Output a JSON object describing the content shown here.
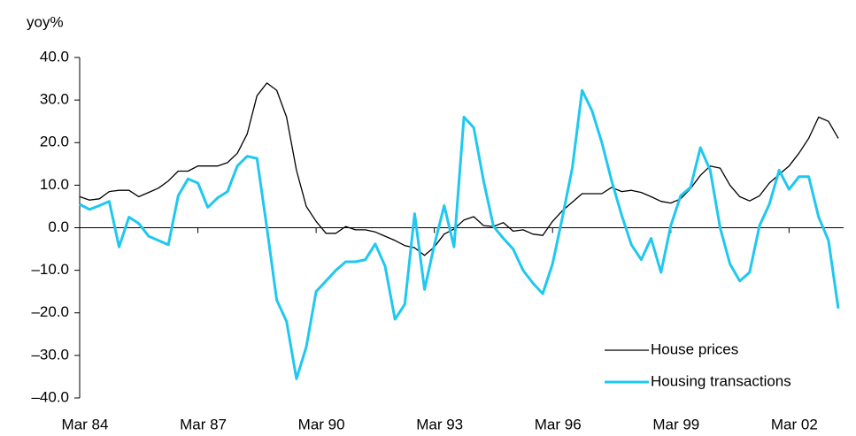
{
  "chart_data": {
    "type": "line",
    "y_label": "yoy%",
    "categories": [
      "Mar 84",
      null,
      null,
      null,
      null,
      null,
      null,
      null,
      null,
      null,
      null,
      null,
      "Mar 87",
      null,
      null,
      null,
      null,
      null,
      null,
      null,
      null,
      null,
      null,
      null,
      "Mar 90",
      null,
      null,
      null,
      null,
      null,
      null,
      null,
      null,
      null,
      null,
      null,
      "Mar 93",
      null,
      null,
      null,
      null,
      null,
      null,
      null,
      null,
      null,
      null,
      null,
      "Mar 96",
      null,
      null,
      null,
      null,
      null,
      null,
      null,
      null,
      null,
      null,
      null,
      "Mar 99",
      null,
      null,
      null,
      null,
      null,
      null,
      null,
      null,
      null,
      null,
      null,
      "Mar 02",
      null,
      null,
      null,
      null,
      null
    ],
    "series": [
      {
        "name": "House prices",
        "color": "#000000",
        "width": 1.3,
        "values": [
          7.3,
          6.5,
          6.8,
          8.5,
          8.8,
          8.8,
          7.3,
          8.3,
          9.3,
          11,
          13.3,
          13.3,
          14.5,
          14.5,
          14.5,
          15.3,
          17.5,
          22,
          31,
          34,
          32.3,
          26,
          13.5,
          5,
          1.5,
          -1.3,
          -1.3,
          0.3,
          -0.5,
          -0.5,
          -1,
          -2,
          -3,
          -4.2,
          -4.7,
          -6.5,
          -4.5,
          -1.5,
          -0.3,
          1.8,
          2.6,
          0.5,
          0.3,
          1.2,
          -0.8,
          -0.5,
          -1.5,
          -1.8,
          1.5,
          4,
          6,
          8,
          8,
          8,
          9.5,
          8.5,
          8.8,
          8.3,
          7.3,
          6.2,
          5.8,
          6.8,
          9.2,
          12.3,
          14.5,
          14,
          10,
          7.3,
          6.3,
          7.5,
          10.5,
          12.5,
          14.5,
          17.5,
          21,
          26,
          25,
          21
        ]
      },
      {
        "name": "Housing transactions",
        "color": "#1ec8f0",
        "width": 3,
        "values": [
          5.5,
          4.3,
          5.2,
          6.2,
          -4.5,
          2.5,
          1,
          -2,
          -3,
          -4,
          7.5,
          11.5,
          10.5,
          4.8,
          7,
          8.5,
          14.5,
          16.8,
          16.3,
          0,
          -17,
          -22,
          -35.5,
          -28,
          -15,
          -12.5,
          -10,
          -8,
          -8,
          -7.5,
          -3.8,
          -9,
          -21.5,
          -18,
          3.3,
          -14.5,
          -4,
          5.2,
          -4.5,
          26,
          23.5,
          11,
          0.3,
          -2.5,
          -5,
          -10,
          -13,
          -15.5,
          -8.5,
          2.5,
          14,
          32.3,
          27.5,
          20,
          11,
          3,
          -4,
          -7.5,
          -2.5,
          -10.5,
          0.5,
          7.5,
          9.5,
          18.8,
          13.5,
          0,
          -8.5,
          -12.5,
          -10.5,
          0.5,
          5.5,
          13.5,
          9,
          12,
          12,
          2.5,
          -3,
          -19
        ]
      }
    ],
    "ylim": [
      -40,
      40
    ],
    "yticks": [
      {
        "value": 40,
        "label": "40.0"
      },
      {
        "value": 30,
        "label": "30.0"
      },
      {
        "value": 20,
        "label": "20.0"
      },
      {
        "value": 10,
        "label": "10.0"
      },
      {
        "value": 0,
        "label": "0.0"
      },
      {
        "value": -10,
        "label": "–10.0"
      },
      {
        "value": -20,
        "label": "–20.0"
      },
      {
        "value": -30,
        "label": "–30.0"
      },
      {
        "value": -40,
        "label": "–40.0"
      }
    ],
    "grid": false,
    "legend": "lower right"
  }
}
